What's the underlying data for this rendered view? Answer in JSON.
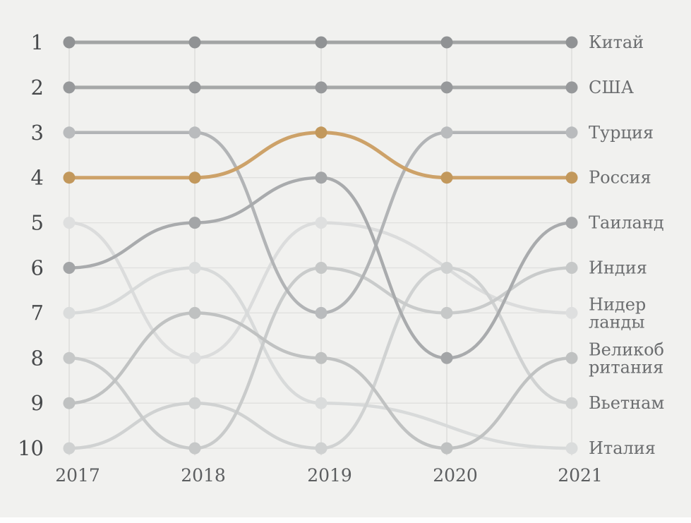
{
  "chart_data": {
    "type": "line",
    "subtype": "bump-rank-chart",
    "x": [
      2017,
      2018,
      2019,
      2020,
      2021
    ],
    "x_tick_labels": [
      "2017",
      "2018",
      "2019",
      "2020",
      "2021"
    ],
    "y_tick_labels": [
      "1",
      "2",
      "3",
      "4",
      "5",
      "6",
      "7",
      "8",
      "9",
      "10"
    ],
    "ylabel": "",
    "xlabel": "",
    "title": "",
    "ylim": [
      1,
      10
    ],
    "y_inverted": true,
    "grid": true,
    "legend_position": "right-of-last-point",
    "highlight_series": "Россия",
    "series": [
      {
        "name": "Китай",
        "values": [
          1,
          1,
          1,
          1,
          1
        ],
        "line_color": "#a2a4a4",
        "dot_color": "#909294",
        "width": 5
      },
      {
        "name": "США",
        "values": [
          2,
          2,
          2,
          2,
          2
        ],
        "line_color": "#a6a8a8",
        "dot_color": "#97999b",
        "width": 5
      },
      {
        "name": "Турция",
        "values": [
          3,
          3,
          7,
          3,
          3
        ],
        "line_color": "#b2b4b6",
        "dot_color": "#b9bbbd",
        "width": 4.5
      },
      {
        "name": "Россия",
        "values": [
          4,
          4,
          3,
          4,
          4
        ],
        "line_color": "#cda269",
        "dot_color": "#c2985c",
        "width": 5
      },
      {
        "name": "Таиланд",
        "values": [
          6,
          5,
          4,
          8,
          5
        ],
        "line_color": "#a9abad",
        "dot_color": "#a3a5a7",
        "width": 4.5
      },
      {
        "name": "Индия",
        "values": [
          8,
          10,
          6,
          7,
          6
        ],
        "line_color": "#c9cbcb",
        "dot_color": "#c6c8c8",
        "width": 4.5
      },
      {
        "name": "Нидерланды",
        "values": [
          5,
          8,
          5,
          null,
          7
        ],
        "line_color": "#dbdcdc",
        "dot_color": "#dedfdf",
        "width": 4.5,
        "label_lines": [
          "Нидер",
          "ланды"
        ]
      },
      {
        "name": "Великобритания",
        "values": [
          9,
          7,
          8,
          10,
          8
        ],
        "line_color": "#c0c2c2",
        "dot_color": "#bfc1c1",
        "width": 4.5,
        "label_lines": [
          "Великоб",
          "ритания"
        ]
      },
      {
        "name": "Вьетнам",
        "values": [
          10,
          9,
          10,
          6,
          9
        ],
        "line_color": "#d0d2d2",
        "dot_color": "#cfd1d1",
        "width": 4.5
      },
      {
        "name": "Италия",
        "values": [
          7,
          6,
          9,
          null,
          10
        ],
        "line_color": "#d8dada",
        "dot_color": "#dadcdc",
        "width": 4.5
      }
    ],
    "colors": {
      "background": "#f1f1ef",
      "grid_line": "#e0e0de",
      "column_line": "#d9d9d7",
      "accent": "#cda269"
    }
  },
  "layout_note_visible_text_only": true
}
